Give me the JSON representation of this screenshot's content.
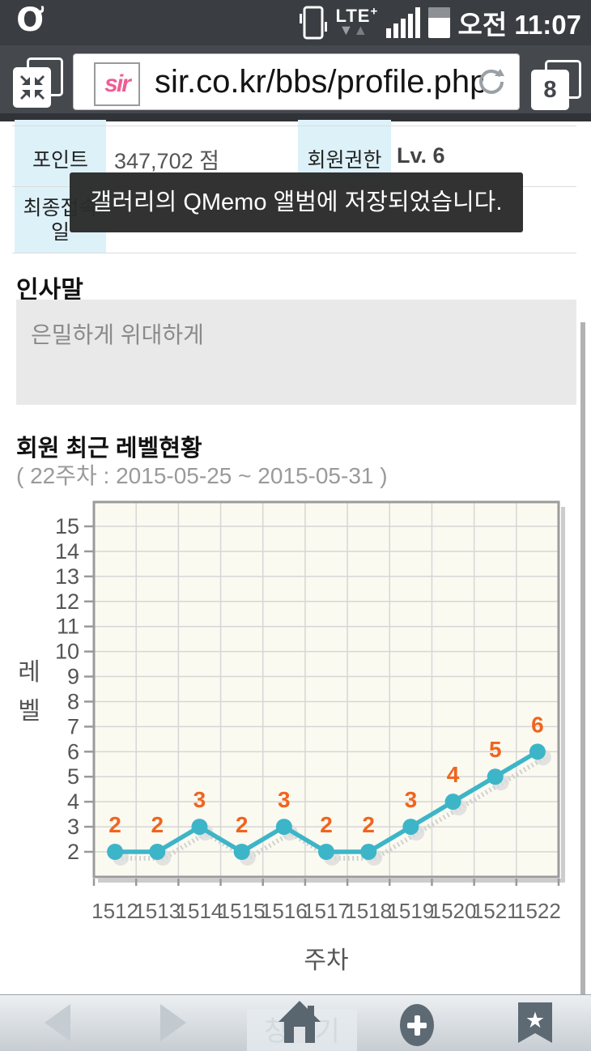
{
  "status_bar": {
    "time": "오전 11:07",
    "network_label": "LTE",
    "network_plus": "+",
    "logo_glyph": "Ơ"
  },
  "browser": {
    "url": "sir.co.kr/bbs/profile.php",
    "tab_count": "8",
    "favicon_text": "sir"
  },
  "profile_table": {
    "row1": {
      "label1": "포인트",
      "value1": "347,702 점",
      "label2": "회원권한",
      "value2": "Lv. 6"
    },
    "row2": {
      "label1": "최종접속일"
    }
  },
  "toast": {
    "message": "갤러리의 QMemo 앨범에 저장되었습니다."
  },
  "greeting": {
    "title": "인사말",
    "text": "은밀하게 위대하게"
  },
  "chart_section": {
    "title": "회원 최근 레벨현황",
    "subtitle": "( 22주차 : 2015-05-25 ~ 2015-05-31 )"
  },
  "chart_data": {
    "type": "line",
    "title": "회원 최근 레벨현황",
    "subtitle": "( 22주차 : 2015-05-25 ~ 2015-05-31 )",
    "categories": [
      "1512",
      "1513",
      "1514",
      "1515",
      "1516",
      "1517",
      "1518",
      "1519",
      "1520",
      "1521",
      "1522"
    ],
    "values": [
      2,
      2,
      3,
      2,
      3,
      2,
      2,
      3,
      4,
      5,
      6
    ],
    "xlabel": "주차",
    "ylabel": "레벨",
    "ylim": [
      2,
      15
    ],
    "yticks": [
      2,
      3,
      4,
      5,
      6,
      7,
      8,
      9,
      10,
      11,
      12,
      13,
      14,
      15
    ],
    "grid": true,
    "legend": false,
    "line_color": "#3db5c8",
    "marker_color": "#3db5c8",
    "data_label_color": "#f1641e",
    "plot_bg": "#fbfaf1",
    "grid_color": "#d6d6d6",
    "border_color": "#9b9b9b",
    "shadow_color": "#cccccc"
  },
  "nav_bar": {
    "close_label": "창닫기"
  }
}
